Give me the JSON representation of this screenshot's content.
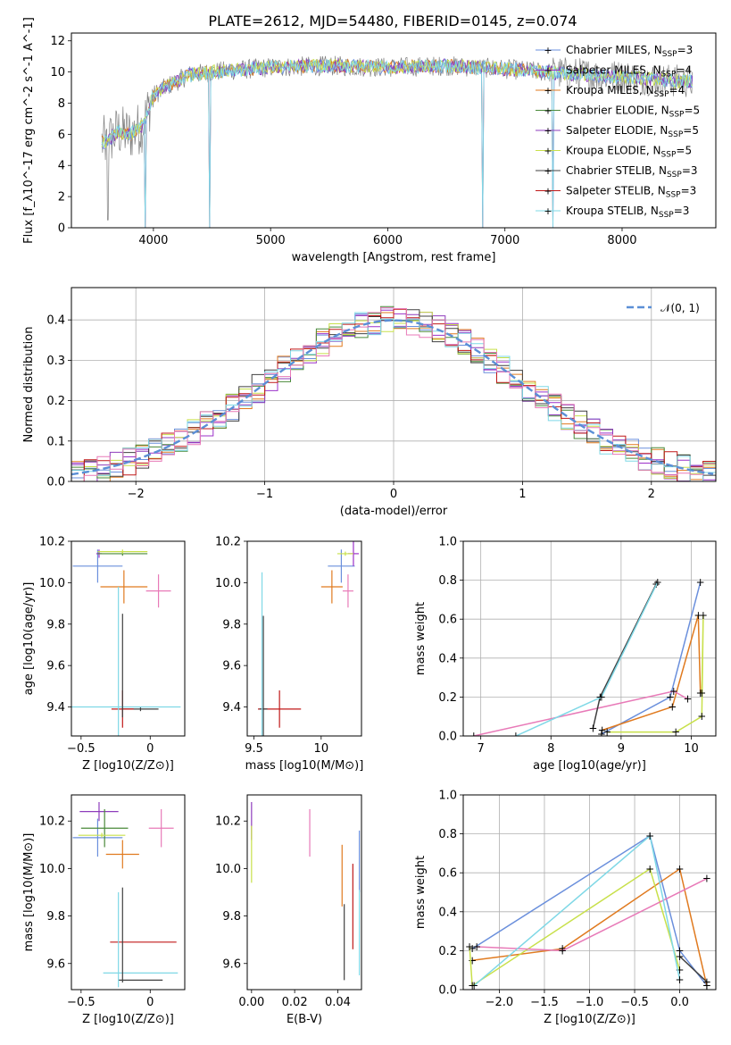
{
  "figure": {
    "title": "PLATE=2612, MJD=54480, FIBERID=0145, z=0.074"
  },
  "colors": {
    "chabrier_miles": "#6a8fdc",
    "salpeter_miles": "#9b30c9",
    "kroupa_miles": "#e07a1f",
    "chabrier_elodie": "#4a8a3a",
    "salpeter_elodie": "#8e3cbc",
    "kroupa_elodie": "#c8e04a",
    "chabrier_stelib": "#404040",
    "salpeter_stelib": "#c01818",
    "kroupa_stelib": "#7fd8e6",
    "pink": "#e87ab8",
    "normal": "#5b8fd6",
    "spectrum": "#808080"
  },
  "chart_data": [
    {
      "id": "spectrum",
      "type": "line",
      "xlabel": "wavelength [Angstrom, rest frame]",
      "ylabel": "Flux [f_λ10^-17 erg cm^-2 s^-1 A^-1]",
      "xlim": [
        3300,
        8800
      ],
      "ylim": [
        0,
        12.5
      ],
      "xticks": [
        4000,
        5000,
        6000,
        7000,
        8000
      ],
      "yticks": [
        0,
        2,
        4,
        6,
        8,
        10,
        12
      ],
      "legend_position": "right",
      "legend": [
        {
          "label": "Chabrier MILES, N",
          "sub": "SSP",
          "suffix": "=3",
          "color_key": "chabrier_miles"
        },
        {
          "label": "Salpeter MILES, N",
          "sub": "SSP",
          "suffix": "=4",
          "color_key": "salpeter_miles"
        },
        {
          "label": "Kroupa MILES, N",
          "sub": "SSP",
          "suffix": "=4",
          "color_key": "kroupa_miles"
        },
        {
          "label": "Chabrier ELODIE, N",
          "sub": "SSP",
          "suffix": "=5",
          "color_key": "chabrier_elodie"
        },
        {
          "label": "Salpeter ELODIE, N",
          "sub": "SSP",
          "suffix": "=5",
          "color_key": "salpeter_elodie"
        },
        {
          "label": "Kroupa ELODIE, N",
          "sub": "SSP",
          "suffix": "=5",
          "color_key": "kroupa_elodie"
        },
        {
          "label": "Chabrier STELIB, N",
          "sub": "SSP",
          "suffix": "=3",
          "color_key": "chabrier_stelib"
        },
        {
          "label": "Salpeter STELIB, N",
          "sub": "SSP",
          "suffix": "=3",
          "color_key": "salpeter_stelib"
        },
        {
          "label": "Kroupa STELIB, N",
          "sub": "SSP",
          "suffix": "=3",
          "color_key": "kroupa_stelib"
        }
      ],
      "continuum_anchor_points": [
        [
          3600,
          5.5
        ],
        [
          3700,
          6.2
        ],
        [
          3800,
          6.0
        ],
        [
          3900,
          6.5
        ],
        [
          4000,
          8.5
        ],
        [
          4100,
          9.0
        ],
        [
          4300,
          9.8
        ],
        [
          4500,
          10.0
        ],
        [
          5000,
          10.3
        ],
        [
          5500,
          10.4
        ],
        [
          6000,
          10.3
        ],
        [
          6500,
          10.4
        ],
        [
          7000,
          10.2
        ],
        [
          7500,
          9.9
        ],
        [
          8000,
          9.7
        ],
        [
          8500,
          9.4
        ]
      ],
      "notable_drops": [
        [
          3930,
          0
        ],
        [
          4480,
          0
        ],
        [
          6810,
          0
        ],
        [
          7410,
          0
        ]
      ]
    },
    {
      "id": "residuals",
      "type": "histogram",
      "xlabel": "(data-model)/error",
      "ylabel": "Normed distribution",
      "xlim": [
        -2.5,
        2.5
      ],
      "ylim": [
        0,
        0.48
      ],
      "xticks": [
        -2,
        -1,
        0,
        1,
        2
      ],
      "yticks": [
        0.0,
        0.1,
        0.2,
        0.3,
        0.4
      ],
      "grid": true,
      "legend_position": "top-right",
      "legend_label": "𝒩(0, 1)",
      "normal_curve": {
        "mean": 0,
        "sigma": 1
      },
      "bin_width": 0.1,
      "bin_start": -2.5
    },
    {
      "id": "age_vs_Z",
      "type": "scatter",
      "xlabel": "Z [log10(Z/Z⊙)]",
      "ylabel": "age [log10(age/yr)]",
      "xlim": [
        -0.57,
        0.25
      ],
      "ylim": [
        9.26,
        10.2
      ],
      "xticks": [
        -0.5,
        0.0
      ],
      "yticks": [
        9.4,
        9.6,
        9.8,
        10.0,
        10.2
      ],
      "points": [
        {
          "x": -0.38,
          "y": 10.08,
          "xerr": 0.18,
          "yerr": 0.08,
          "color_key": "chabrier_miles"
        },
        {
          "x": -0.37,
          "y": 10.14,
          "xerr": 0.02,
          "yerr": 0.02,
          "color_key": "salpeter_miles"
        },
        {
          "x": -0.19,
          "y": 9.98,
          "xerr": 0.17,
          "yerr": 0.08,
          "color_key": "kroupa_miles"
        },
        {
          "x": -0.2,
          "y": 10.14,
          "xerr": 0.18,
          "yerr": 0.01,
          "color_key": "chabrier_elodie"
        },
        {
          "x": -0.2,
          "y": 10.15,
          "xerr": 0.18,
          "yerr": 0.01,
          "color_key": "kroupa_elodie"
        },
        {
          "x": 0.06,
          "y": 9.96,
          "xerr": 0.09,
          "yerr": 0.08,
          "color_key": "pink"
        },
        {
          "x": -0.07,
          "y": 9.39,
          "xerr": 0.13,
          "yerr": 0.01,
          "color_key": "chabrier_stelib"
        },
        {
          "x": -0.2,
          "y": 9.39,
          "xerr": 0.08,
          "yerr": 0.09,
          "color_key": "salpeter_stelib"
        },
        {
          "x": -0.23,
          "y": 9.4,
          "xerr": 0.45,
          "yerr": 0.58,
          "color_key": "kroupa_stelib"
        },
        {
          "x": -0.2,
          "y": 9.6,
          "xerr": 0.0,
          "yerr": 0.25,
          "color_key": "chabrier_stelib"
        }
      ]
    },
    {
      "id": "age_vs_mass",
      "type": "scatter",
      "xlabel": "mass [log10(M/M⊙)]",
      "ylabel": "",
      "xlim": [
        9.45,
        10.3
      ],
      "ylim": [
        9.26,
        10.2
      ],
      "xticks": [
        9.5,
        10.0
      ],
      "yticks": [
        9.4,
        9.6,
        9.8,
        10.0,
        10.2
      ],
      "points": [
        {
          "x": 10.15,
          "y": 10.08,
          "xerr": 0.1,
          "yerr": 0.08,
          "color_key": "chabrier_miles"
        },
        {
          "x": 10.24,
          "y": 10.14,
          "xerr": 0.04,
          "yerr": 0.06,
          "color_key": "salpeter_miles"
        },
        {
          "x": 10.08,
          "y": 9.98,
          "xerr": 0.08,
          "yerr": 0.08,
          "color_key": "kroupa_miles"
        },
        {
          "x": 10.2,
          "y": 9.96,
          "xerr": 0.04,
          "yerr": 0.08,
          "color_key": "pink"
        },
        {
          "x": 10.18,
          "y": 10.14,
          "xerr": 0.06,
          "yerr": 0.01,
          "color_key": "kroupa_elodie"
        },
        {
          "x": 9.69,
          "y": 9.39,
          "xerr": 0.16,
          "yerr": 0.09,
          "color_key": "salpeter_stelib"
        },
        {
          "x": 9.57,
          "y": 9.39,
          "xerr": 0.03,
          "yerr": 0.45,
          "color_key": "chabrier_stelib"
        },
        {
          "x": 9.56,
          "y": 9.4,
          "xerr": 0.0,
          "yerr": 0.65,
          "color_key": "kroupa_stelib"
        }
      ]
    },
    {
      "id": "mass_weight_vs_age",
      "type": "line",
      "xlabel": "age [log10(age/yr)]",
      "ylabel": "mass weight",
      "xlim": [
        6.75,
        10.35
      ],
      "ylim": [
        0,
        1.0
      ],
      "xticks": [
        7,
        8,
        9,
        10
      ],
      "yticks": [
        0.0,
        0.2,
        0.4,
        0.6,
        0.8,
        1.0
      ],
      "grid": true,
      "series": [
        {
          "color_key": "chabrier_miles",
          "x": [
            8.72,
            9.7,
            10.13
          ],
          "y": [
            0.01,
            0.2,
            0.79
          ]
        },
        {
          "color_key": "kroupa_miles",
          "x": [
            8.73,
            9.73,
            10.1,
            10.13
          ],
          "y": [
            0.03,
            0.15,
            0.62,
            0.22
          ]
        },
        {
          "color_key": "kroupa_elodie",
          "x": [
            8.8,
            9.78,
            10.15,
            10.17,
            10.15
          ],
          "y": [
            0.02,
            0.02,
            0.1,
            0.62,
            0.22
          ]
        },
        {
          "color_key": "pink",
          "x": [
            6.9,
            9.75,
            9.95
          ],
          "y": [
            0.0,
            0.23,
            0.19
          ]
        },
        {
          "color_key": "chabrier_stelib",
          "x": [
            8.6,
            8.7,
            9.5
          ],
          "y": [
            0.04,
            0.2,
            0.78
          ]
        },
        {
          "color_key": "kroupa_stelib",
          "x": [
            7.5,
            8.72,
            9.52
          ],
          "y": [
            0.0,
            0.2,
            0.79
          ]
        }
      ]
    },
    {
      "id": "mass_vs_Z",
      "type": "scatter",
      "xlabel": "Z [log10(Z/Z⊙)]",
      "ylabel": "mass [log10(M/M⊙)]",
      "xlim": [
        -0.57,
        0.25
      ],
      "ylim": [
        9.49,
        10.31
      ],
      "xticks": [
        -0.5,
        0.0
      ],
      "yticks": [
        9.6,
        9.8,
        10.0,
        10.2
      ],
      "points": [
        {
          "x": -0.37,
          "y": 10.24,
          "xerr": 0.14,
          "yerr": 0.04,
          "color_key": "salpeter_elodie"
        },
        {
          "x": 0.08,
          "y": 10.17,
          "xerr": 0.09,
          "yerr": 0.08,
          "color_key": "pink"
        },
        {
          "x": -0.38,
          "y": 10.13,
          "xerr": 0.18,
          "yerr": 0.08,
          "color_key": "chabrier_miles"
        },
        {
          "x": -0.33,
          "y": 10.17,
          "xerr": 0.17,
          "yerr": 0.08,
          "color_key": "chabrier_elodie"
        },
        {
          "x": -0.35,
          "y": 10.14,
          "xerr": 0.17,
          "yerr": 0.01,
          "color_key": "kroupa_elodie"
        },
        {
          "x": -0.2,
          "y": 10.06,
          "xerr": 0.12,
          "yerr": 0.06,
          "color_key": "kroupa_miles"
        },
        {
          "x": -0.05,
          "y": 9.69,
          "xerr": 0.24,
          "yerr": 0.0,
          "color_key": "salpeter_stelib"
        },
        {
          "x": -0.07,
          "y": 9.56,
          "xerr": 0.27,
          "yerr": 0.0,
          "color_key": "kroupa_stelib"
        },
        {
          "x": -0.07,
          "y": 9.53,
          "xerr": 0.16,
          "yerr": 0.0,
          "color_key": "chabrier_stelib"
        },
        {
          "x": -0.2,
          "y": 9.72,
          "xerr": 0.0,
          "yerr": 0.2,
          "color_key": "chabrier_stelib"
        },
        {
          "x": -0.23,
          "y": 9.7,
          "xerr": 0.0,
          "yerr": 0.2,
          "color_key": "kroupa_stelib"
        }
      ]
    },
    {
      "id": "mass_vs_ebv",
      "type": "scatter",
      "xlabel": "E(B-V)",
      "ylabel": "",
      "xlim": [
        -0.002,
        0.051
      ],
      "ylim": [
        9.49,
        10.31
      ],
      "xticks": [
        0.0,
        0.02,
        0.04
      ],
      "xtick_labels": [
        "0.00",
        "0.02",
        "0.04"
      ],
      "yticks": [
        9.6,
        9.8,
        10.0,
        10.2
      ],
      "points": [
        {
          "x": 0.0,
          "y": 10.2,
          "xerr": 0.0,
          "yerr": 0.08,
          "color_key": "salpeter_elodie"
        },
        {
          "x": 0.0,
          "y": 10.06,
          "xerr": 0.0,
          "yerr": 0.12,
          "color_key": "kroupa_elodie"
        },
        {
          "x": 0.027,
          "y": 10.15,
          "xerr": 0.0,
          "yerr": 0.1,
          "color_key": "pink"
        },
        {
          "x": 0.042,
          "y": 9.97,
          "xerr": 0.0,
          "yerr": 0.13,
          "color_key": "kroupa_miles"
        },
        {
          "x": 0.05,
          "y": 10.03,
          "xerr": 0.0,
          "yerr": 0.13,
          "color_key": "chabrier_miles"
        },
        {
          "x": 0.047,
          "y": 9.84,
          "xerr": 0.0,
          "yerr": 0.18,
          "color_key": "salpeter_stelib"
        },
        {
          "x": 0.05,
          "y": 9.73,
          "xerr": 0.0,
          "yerr": 0.18,
          "color_key": "kroupa_stelib"
        },
        {
          "x": 0.043,
          "y": 9.69,
          "xerr": 0.0,
          "yerr": 0.16,
          "color_key": "chabrier_stelib"
        }
      ]
    },
    {
      "id": "mass_weight_vs_Z",
      "type": "line",
      "xlabel": "Z [log10(Z/Z⊙)]",
      "ylabel": "mass weight",
      "xlim": [
        -2.4,
        0.4
      ],
      "ylim": [
        0,
        1.0
      ],
      "xticks": [
        -2.0,
        -1.5,
        -1.0,
        -0.5,
        0.0
      ],
      "xtick_labels": [
        "−2.0",
        "−1.5",
        "−1.0",
        "−0.5",
        "0.0"
      ],
      "yticks": [
        0.0,
        0.2,
        0.4,
        0.6,
        0.8,
        1.0
      ],
      "grid": true,
      "series": [
        {
          "color_key": "chabrier_miles",
          "x": [
            -2.3,
            -0.33,
            0.0,
            0.3
          ],
          "y": [
            0.21,
            0.79,
            0.2,
            0.02
          ]
        },
        {
          "color_key": "kroupa_miles",
          "x": [
            -2.3,
            -1.3,
            0.0,
            0.3
          ],
          "y": [
            0.15,
            0.21,
            0.62,
            0.02
          ]
        },
        {
          "color_key": "kroupa_elodie",
          "x": [
            -2.33,
            -2.3,
            -0.33,
            0.0
          ],
          "y": [
            0.22,
            0.02,
            0.62,
            0.1
          ]
        },
        {
          "color_key": "pink",
          "x": [
            -2.25,
            -1.3,
            0.3
          ],
          "y": [
            0.22,
            0.2,
            0.57
          ]
        },
        {
          "color_key": "chabrier_stelib",
          "x": [
            0.0,
            0.3
          ],
          "y": [
            0.17,
            0.04
          ]
        },
        {
          "color_key": "kroupa_stelib",
          "x": [
            -2.28,
            -0.33,
            0.0
          ],
          "y": [
            0.02,
            0.79,
            0.05
          ]
        }
      ]
    }
  ]
}
